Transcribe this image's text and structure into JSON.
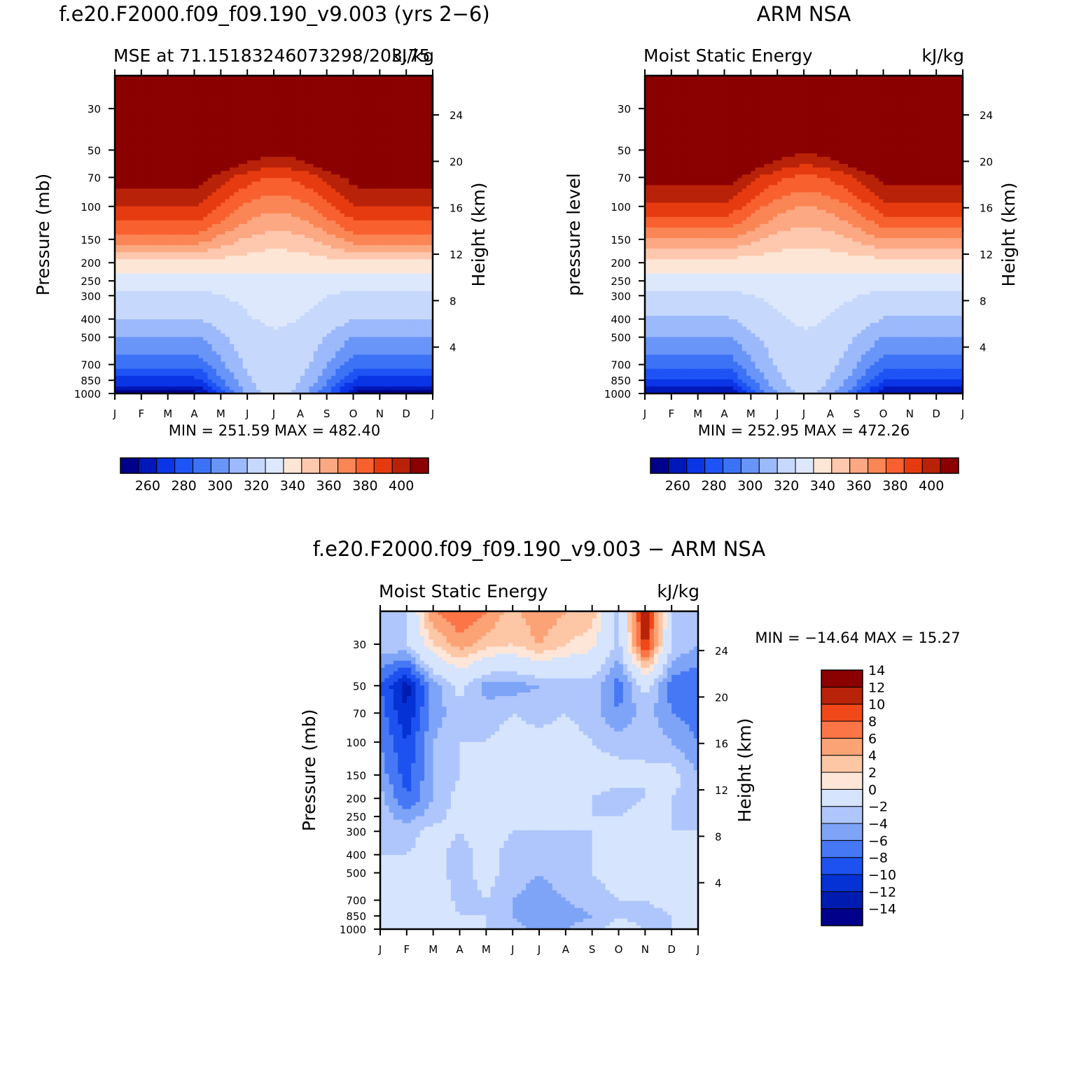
{
  "chart_data": [
    {
      "type": "heatmap",
      "id": "model",
      "title": "f.e20.F2000.f09_f09.190_v9.003 (yrs 2−6)",
      "subtitle_left": "MSE at 71.15183246073298/203.75",
      "subtitle_right": "kJ/kg",
      "ylabel": "Pressure (mb)",
      "ylabel_right": "Height (km)",
      "x_tick_labels": [
        "J",
        "F",
        "M",
        "A",
        "M",
        "J",
        "J",
        "A",
        "S",
        "O",
        "N",
        "D",
        "J"
      ],
      "y_ticks": [
        30,
        50,
        70,
        100,
        150,
        200,
        250,
        300,
        400,
        500,
        700,
        850,
        1000
      ],
      "ylim": [
        20,
        1000
      ],
      "height_ticks": [
        4,
        8,
        12,
        16,
        20,
        24
      ],
      "minmax_text": "MIN = 251.59 MAX = 482.40",
      "min": 251.59,
      "max": 482.4,
      "months": [
        1,
        2,
        3,
        4,
        5,
        6,
        7,
        8,
        9,
        10,
        11,
        12,
        13
      ],
      "profile_levels_mb": [
        1000,
        925,
        850,
        700,
        500,
        400,
        300,
        250,
        200,
        150,
        100,
        70,
        50,
        30,
        20
      ],
      "profile_winter": [
        252,
        262,
        272,
        288,
        304,
        315,
        322,
        330,
        342,
        370,
        395,
        410,
        440,
        482,
        482
      ],
      "profile_summer": [
        318,
        320,
        321,
        323,
        324,
        326,
        328,
        332,
        338,
        350,
        368,
        385,
        410,
        478,
        482
      ],
      "colorbar": {
        "levels": [
          255,
          260,
          265,
          270,
          275,
          280,
          285,
          290,
          295,
          300,
          305,
          310,
          315,
          320,
          325,
          330,
          335,
          340,
          345,
          350,
          355,
          360,
          365,
          370,
          375,
          380,
          385,
          390,
          395,
          400,
          405,
          410
        ],
        "labels": [
          "260",
          "280",
          "300",
          "320",
          "340",
          "360",
          "380",
          "400"
        ]
      }
    },
    {
      "type": "heatmap",
      "id": "obs",
      "title": "ARM NSA",
      "subtitle_left": "Moist Static Energy",
      "subtitle_right": "kJ/kg",
      "ylabel": "pressure level",
      "ylabel_right": "Height (km)",
      "x_tick_labels": [
        "J",
        "F",
        "M",
        "A",
        "M",
        "J",
        "J",
        "A",
        "S",
        "O",
        "N",
        "D",
        "J"
      ],
      "y_ticks": [
        30,
        50,
        70,
        100,
        150,
        200,
        250,
        300,
        400,
        500,
        700,
        850,
        1000
      ],
      "ylim": [
        20,
        1000
      ],
      "height_ticks": [
        4,
        8,
        12,
        16,
        20,
        24
      ],
      "minmax_text": "MIN = 252.95 MAX = 472.26",
      "min": 252.95,
      "max": 472.26,
      "months": [
        1,
        2,
        3,
        4,
        5,
        6,
        7,
        8,
        9,
        10,
        11,
        12,
        13
      ],
      "profile_levels_mb": [
        1000,
        925,
        850,
        700,
        500,
        400,
        300,
        250,
        200,
        150,
        100,
        70,
        50,
        30,
        20
      ],
      "profile_winter": [
        253,
        263,
        273,
        288,
        304,
        314,
        322,
        330,
        340,
        365,
        392,
        410,
        440,
        472,
        472
      ],
      "profile_summer": [
        316,
        318,
        320,
        322,
        324,
        326,
        328,
        332,
        338,
        348,
        365,
        383,
        408,
        468,
        472
      ],
      "colorbar": {
        "levels": [
          255,
          260,
          265,
          270,
          275,
          280,
          285,
          290,
          295,
          300,
          305,
          310,
          315,
          320,
          325,
          330,
          335,
          340,
          345,
          350,
          355,
          360,
          365,
          370,
          375,
          380,
          385,
          390,
          395,
          400,
          405,
          410
        ],
        "labels": [
          "260",
          "280",
          "300",
          "320",
          "340",
          "360",
          "380",
          "400"
        ]
      }
    },
    {
      "type": "heatmap",
      "id": "diff",
      "title": "f.e20.F2000.f09_f09.190_v9.003 − ARM NSA",
      "subtitle_left": "Moist Static Energy",
      "subtitle_right": "kJ/kg",
      "ylabel": "Pressure (mb)",
      "ylabel_right": "Height (km)",
      "x_tick_labels": [
        "J",
        "F",
        "M",
        "A",
        "M",
        "J",
        "J",
        "A",
        "S",
        "O",
        "N",
        "D",
        "J"
      ],
      "y_ticks": [
        30,
        50,
        70,
        100,
        150,
        200,
        250,
        300,
        400,
        500,
        700,
        850,
        1000
      ],
      "ylim": [
        20,
        1000
      ],
      "height_ticks": [
        4,
        8,
        12,
        16,
        20,
        24
      ],
      "minmax_text": "MIN = −14.64 MAX = 15.27",
      "min": -14.64,
      "max": 15.27,
      "grid_levels_mb": [
        1000,
        850,
        700,
        500,
        400,
        300,
        250,
        200,
        150,
        100,
        70,
        50,
        30,
        20
      ],
      "grid_months": [
        1,
        2,
        3,
        4,
        5,
        6,
        7,
        8,
        9,
        10,
        11,
        12,
        13
      ],
      "grid_values": [
        [
          -1,
          1,
          -1,
          -1,
          -2,
          -3,
          -5,
          -4,
          -3,
          -1,
          -2,
          -2,
          -1
        ],
        [
          -1,
          1,
          1,
          -2,
          -2,
          -4,
          -6,
          -5,
          -4,
          -2,
          -3,
          -2,
          -2
        ],
        [
          -1,
          1,
          1,
          -3,
          -2,
          -4,
          -5,
          -4,
          -3,
          -2,
          -2,
          -1,
          -1
        ],
        [
          -2,
          -1,
          -1,
          -3,
          -1,
          -3,
          -4,
          -3,
          -2,
          -1,
          -2,
          -2,
          -2
        ],
        [
          -2,
          -2,
          -1,
          -3,
          -1,
          -3,
          -4,
          -3,
          -2,
          -1,
          -1,
          -2,
          -2
        ],
        [
          -2,
          -3,
          -1,
          -2,
          -1,
          -2,
          -2,
          -2,
          -2,
          -1,
          -1,
          -2,
          -2
        ],
        [
          -3,
          -5,
          -3,
          -1,
          -1,
          -1,
          1,
          -1,
          -2,
          -2,
          -1,
          -2,
          -3
        ],
        [
          -3,
          -8,
          -4,
          -1,
          -1,
          1,
          1,
          -1,
          -2,
          -3,
          -2,
          -2,
          -3
        ],
        [
          -5,
          -9,
          -4,
          -2,
          -1,
          1,
          1,
          -1,
          -1,
          -1,
          -2,
          -1,
          -4
        ],
        [
          -6,
          -10,
          -4,
          -2,
          -2,
          -1,
          -1,
          -1,
          -2,
          -3,
          -2,
          -4,
          -6
        ],
        [
          -7,
          -12,
          -5,
          -3,
          -3,
          -2,
          -3,
          -2,
          -3,
          -6,
          -3,
          -6,
          -7
        ],
        [
          -8,
          -13,
          -5,
          -1,
          -5,
          -5,
          -4,
          -3,
          -3,
          -7,
          -1,
          -7,
          -8
        ],
        [
          -3,
          -2,
          4,
          7,
          5,
          4,
          6,
          4,
          3,
          -3,
          13,
          -2,
          -4
        ],
        [
          -3,
          -2,
          8,
          10,
          8,
          5,
          8,
          6,
          5,
          -3,
          15,
          -2,
          -4
        ]
      ],
      "colorbar": {
        "levels": [
          -14,
          -12,
          -10,
          -8,
          -6,
          -4,
          -2,
          0,
          2,
          4,
          6,
          8,
          10,
          12,
          14
        ],
        "labels": [
          "−14",
          "−12",
          "−10",
          "−8",
          "−6",
          "−4",
          "−2",
          "0",
          "2",
          "4",
          "6",
          "8",
          "10",
          "12",
          "14"
        ]
      }
    }
  ]
}
